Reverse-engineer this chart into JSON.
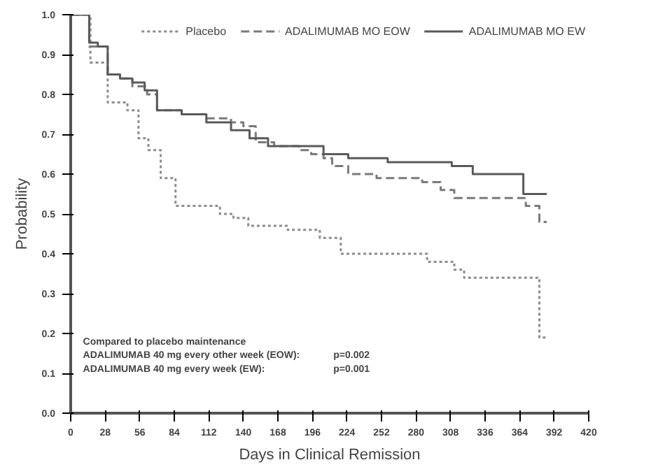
{
  "chart_data": {
    "type": "step",
    "xlabel": "Days in Clinical Remission",
    "ylabel": "Probability",
    "xlim": [
      0,
      420
    ],
    "xticks": [
      0,
      28,
      56,
      84,
      112,
      140,
      168,
      196,
      224,
      252,
      280,
      308,
      336,
      364,
      392,
      420
    ],
    "ylim": [
      0,
      1.0
    ],
    "yticks": [
      {
        "value": 0,
        "label": "0.0"
      },
      0.1,
      0.2,
      0.3,
      0.4,
      0.5,
      0.6,
      0.7,
      0.8,
      0.9,
      {
        "value": 1.0,
        "label": "1.0"
      }
    ],
    "grid": false,
    "legend": "top",
    "marker": "none",
    "series": [
      {
        "name": "Placebo",
        "color": "#8c8c8c",
        "line_style": "dotted",
        "x": [
          0,
          16,
          30,
          46,
          55,
          63,
          73,
          85,
          121,
          132,
          144,
          176,
          202,
          219,
          289,
          311,
          319,
          380,
          386
        ],
        "values": [
          1.0,
          0.88,
          0.78,
          0.76,
          0.69,
          0.66,
          0.59,
          0.52,
          0.5,
          0.49,
          0.47,
          0.46,
          0.44,
          0.4,
          0.38,
          0.36,
          0.34,
          0.19,
          0.19
        ]
      },
      {
        "name": "ADALIMUMAB MO EOW",
        "color": "#7a7a7a",
        "line_style": "dashed",
        "x": [
          0,
          15,
          30,
          40,
          50,
          62,
          70,
          90,
          110,
          130,
          140,
          150,
          165,
          185,
          195,
          205,
          212,
          225,
          248,
          285,
          300,
          311,
          369,
          380,
          386
        ],
        "values": [
          1.0,
          0.92,
          0.85,
          0.84,
          0.82,
          0.8,
          0.76,
          0.75,
          0.74,
          0.73,
          0.72,
          0.68,
          0.67,
          0.66,
          0.65,
          0.64,
          0.62,
          0.6,
          0.59,
          0.58,
          0.56,
          0.54,
          0.52,
          0.48,
          0.48
        ]
      },
      {
        "name": "ADALIMUMAB MO EW",
        "color": "#5a5a5a",
        "line_style": "solid",
        "x": [
          0,
          15,
          22,
          30,
          40,
          50,
          60,
          70,
          90,
          110,
          130,
          145,
          160,
          185,
          205,
          225,
          257,
          309,
          326,
          367,
          386
        ],
        "values": [
          1.0,
          0.93,
          0.92,
          0.85,
          0.84,
          0.83,
          0.81,
          0.76,
          0.75,
          0.73,
          0.71,
          0.69,
          0.67,
          0.67,
          0.65,
          0.64,
          0.63,
          0.62,
          0.6,
          0.55,
          0.55
        ]
      }
    ],
    "annotations": [
      "Compared to placebo maintenance",
      "ADALIMUMAB 40 mg every other week (EOW):",
      "ADALIMUMAB 40 mg every week (EW):",
      "p=0.002",
      "p=0.001"
    ]
  }
}
